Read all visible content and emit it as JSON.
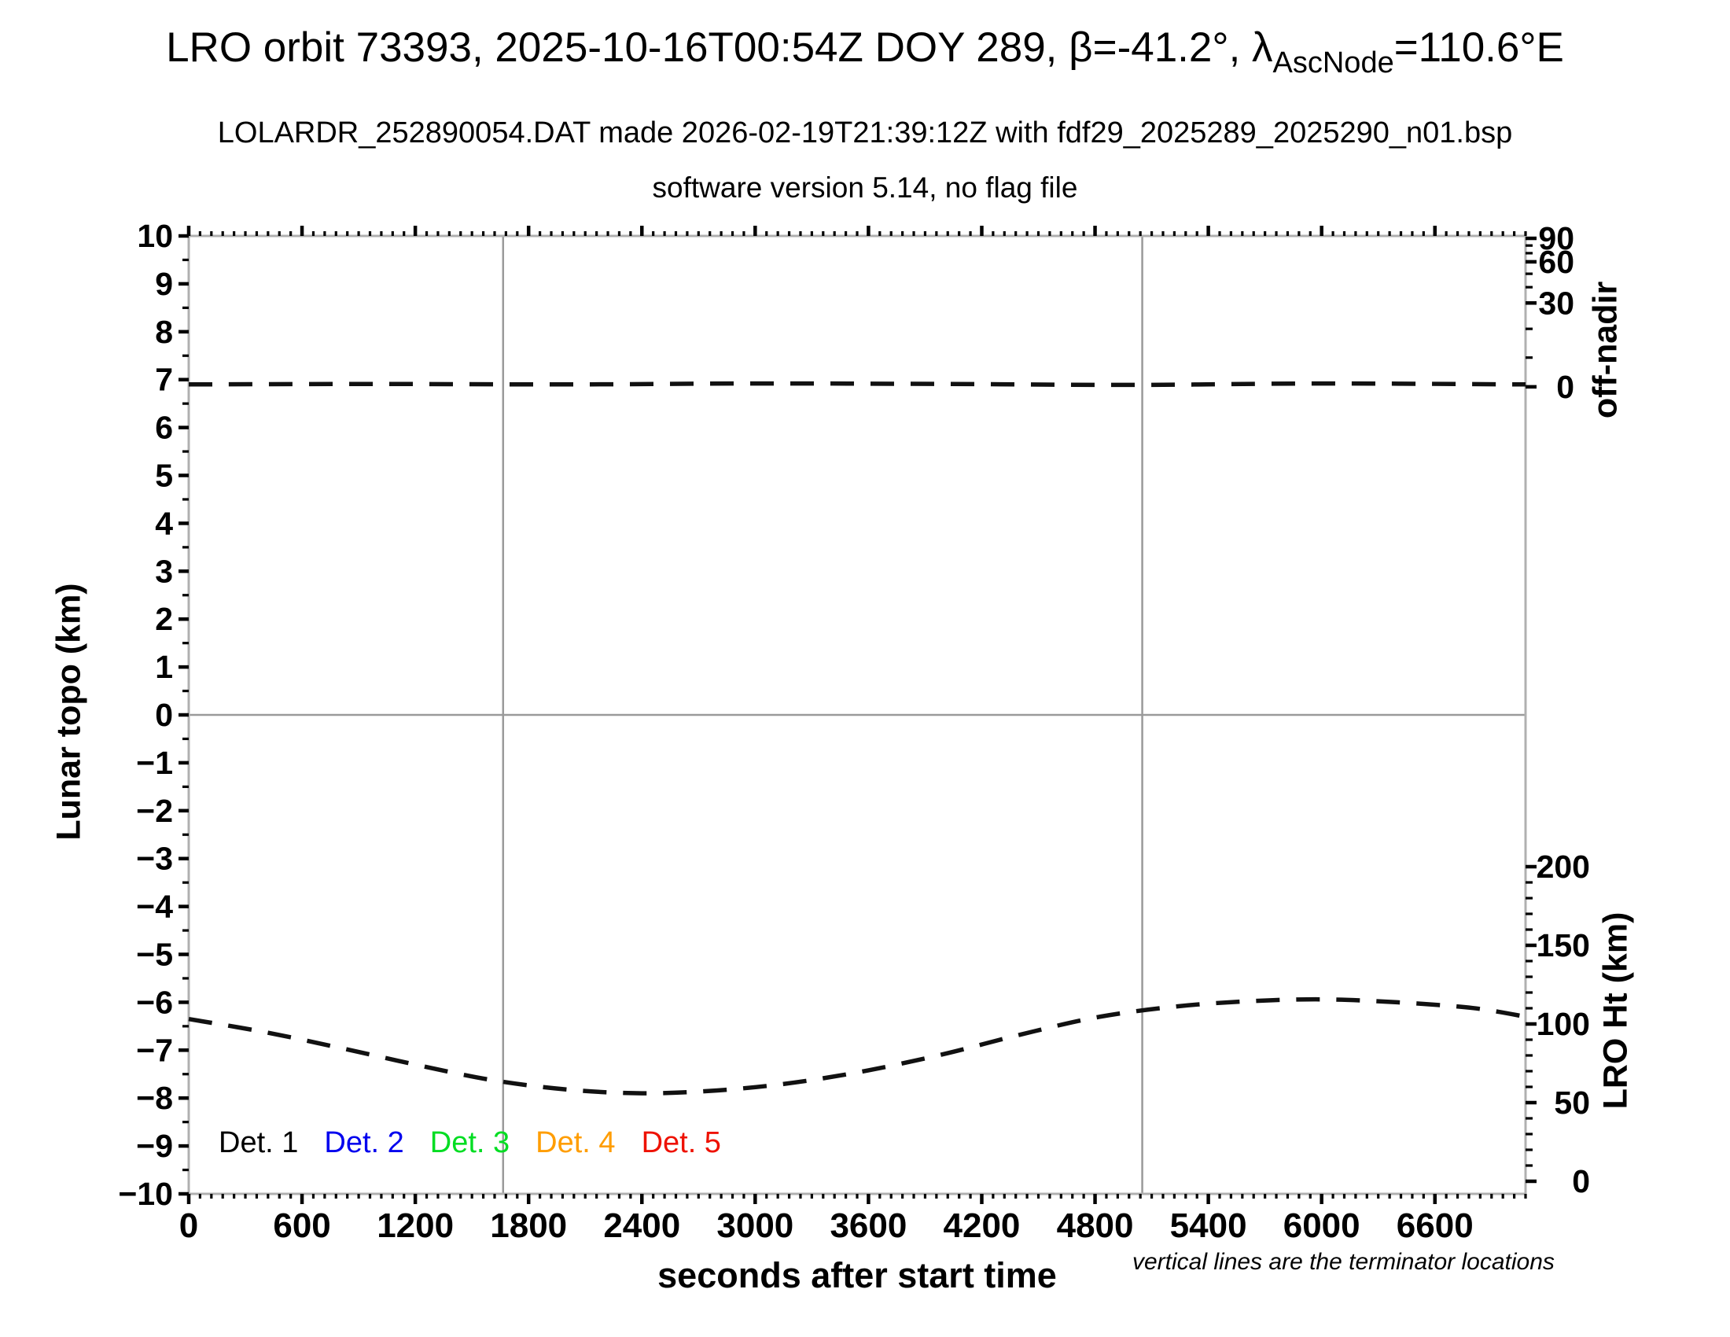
{
  "header": {
    "title_main": "LRO orbit 73393, 2025-10-16T00:54Z DOY 289, β=-41.2°, ",
    "title_lambda": "λ",
    "title_lambda_subscript": "AscNode",
    "title_suffix": "=110.6°E",
    "subtitle1": "LOLARDR_252890054.DAT made 2026-02-19T21:39:12Z with fdf29_2025289_2025290_n01.bsp",
    "subtitle2": "software version 5.14, no flag file"
  },
  "legend": {
    "items": [
      {
        "label": "Det. 1",
        "color": "#000000"
      },
      {
        "label": "Det. 2",
        "color": "#0000ee"
      },
      {
        "label": "Det. 3",
        "color": "#00dd22"
      },
      {
        "label": "Det. 4",
        "color": "#ff9d00"
      },
      {
        "label": "Det. 5",
        "color": "#ee1100"
      }
    ]
  },
  "footnote": "vertical lines are the terminator locations",
  "chart_data": {
    "type": "line",
    "title": "LRO orbit 73393, 2025-10-16T00:54Z DOY 289, β=-41.2°, λAscNode=110.6°E",
    "xlabel": "seconds after start time",
    "ylabel_left": "Lunar topo (km)",
    "ylabel_right_top": "off-nadir",
    "ylabel_right_bottom": "LRO Ht (km)",
    "grid": "off",
    "legend_position": "bottom-left-inside",
    "frame_color": "#b0b0b0",
    "refline_color": "#9a9a9a",
    "curve_color": "#111111",
    "x_axis": {
      "min": 0,
      "max": 7080,
      "major_step": 600,
      "minor_step": 60,
      "major_tick_labels": [
        0,
        600,
        1200,
        1800,
        2400,
        3000,
        3600,
        4200,
        4800,
        5400,
        6000,
        6600
      ]
    },
    "y_axis_left": {
      "min": -10,
      "max": 10,
      "major_step": 1,
      "minor_step": 0.5
    },
    "y_axis_right_top": {
      "units": "deg off-nadir",
      "labels": [
        90,
        60,
        30,
        0
      ],
      "label_positions_topo": [
        9.95,
        9.46,
        8.6,
        6.85
      ],
      "minor_tick_positions_topo": [
        9.8,
        9.64,
        9.21,
        8.93,
        8.06,
        7.46
      ],
      "scale": "nonlinear"
    },
    "y_axis_right_bottom": {
      "units": "km",
      "labels": [
        200,
        150,
        100,
        50,
        0
      ],
      "minor_step_km": 10,
      "km_min": 0,
      "km_max": 200,
      "topo_at_0km": -9.737,
      "topo_per_km": 0.03284,
      "scale": "linear"
    },
    "reference_lines": {
      "horizontal_topo_zero": 0,
      "terminator_seconds": [
        1665,
        5050
      ]
    },
    "series": [
      {
        "name": "spacecraft off-nadir angle",
        "style": "dashed",
        "value_note": "≈0° (nadir pointing) for entire orbit",
        "t": [
          0,
          1000,
          2000,
          3000,
          4000,
          5000,
          6000,
          7080
        ],
        "topo": [
          6.9,
          6.91,
          6.9,
          6.92,
          6.91,
          6.89,
          6.92,
          6.9
        ]
      },
      {
        "name": "LRO height",
        "style": "dashed",
        "t": [
          0,
          400,
          800,
          1200,
          1600,
          2000,
          2400,
          2800,
          3200,
          3600,
          4000,
          4400,
          4800,
          5200,
          5600,
          6000,
          6400,
          6800,
          7080
        ],
        "topo": [
          -6.35,
          -6.62,
          -6.95,
          -7.3,
          -7.62,
          -7.82,
          -7.9,
          -7.84,
          -7.68,
          -7.42,
          -7.08,
          -6.68,
          -6.32,
          -6.1,
          -5.98,
          -5.94,
          -6.0,
          -6.12,
          -6.3
        ],
        "km": [
          103.1,
          94.9,
          84.9,
          74.2,
          64.5,
          58.4,
          55.9,
          57.8,
          62.6,
          70.6,
          80.9,
          93.1,
          104.1,
          110.8,
          114.4,
          115.7,
          113.8,
          110.2,
          104.7
        ]
      }
    ]
  }
}
